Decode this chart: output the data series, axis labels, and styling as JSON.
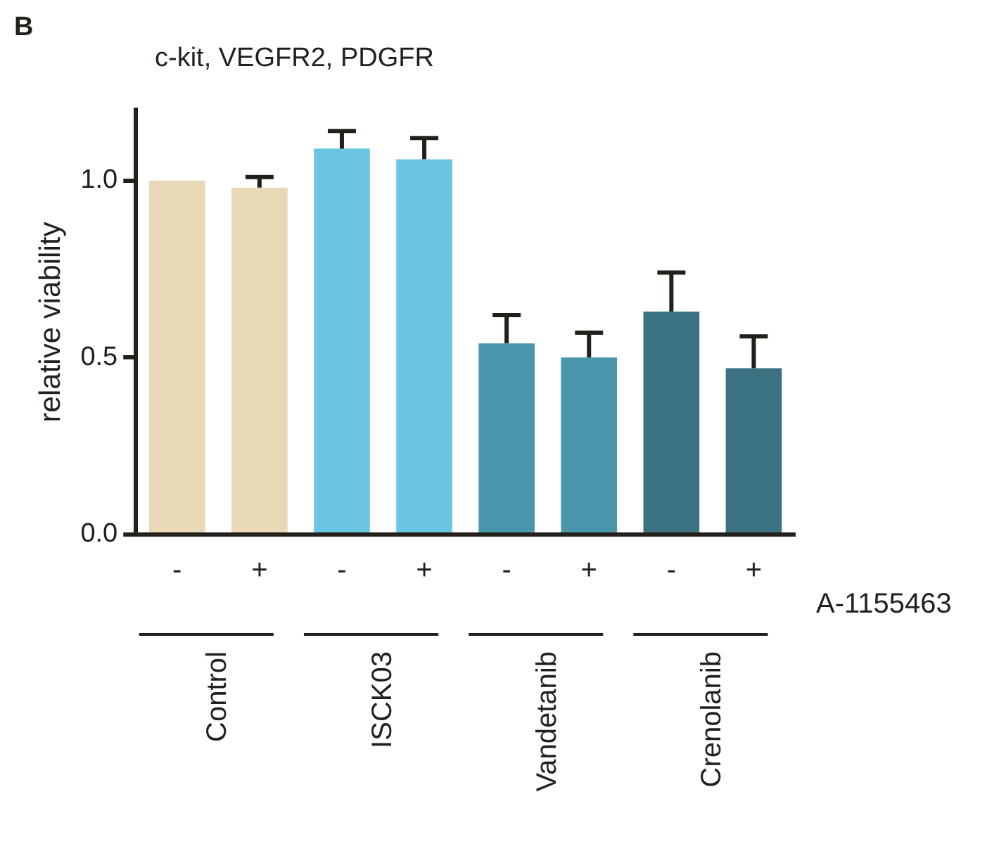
{
  "chart_data": {
    "type": "bar",
    "title": "c-kit, VEGFR2, PDGFR",
    "ylabel": "relative viability",
    "categories": [
      "-",
      "+",
      "-",
      "+",
      "-",
      "+",
      "-",
      "+"
    ],
    "values": [
      1.0,
      0.98,
      1.09,
      1.06,
      0.54,
      0.5,
      0.63,
      0.47
    ],
    "errors": [
      null,
      [
        0.98,
        1.01
      ],
      [
        1.09,
        1.14
      ],
      [
        1.06,
        1.12
      ],
      [
        0.54,
        0.62
      ],
      [
        0.5,
        0.57
      ],
      [
        0.63,
        0.74
      ],
      [
        0.47,
        0.56
      ]
    ],
    "colors": [
      "#e8d8b6",
      "#e8d8b6",
      "#6ac6e2",
      "#6ac6e2",
      "#4a97ad",
      "#4a97ad",
      "#3b7282",
      "#3b7282"
    ],
    "ylim": [
      0,
      1.2
    ],
    "yticks": [
      {
        "value": 0,
        "label": "0.0"
      },
      {
        "value": 0.5,
        "label": "0.5"
      },
      {
        "value": 1,
        "label": "1.0"
      }
    ],
    "annotations": [
      "B",
      "A-1155463",
      "Control",
      "ISCK03",
      "Vandetanib",
      "Crenolanib"
    ]
  }
}
